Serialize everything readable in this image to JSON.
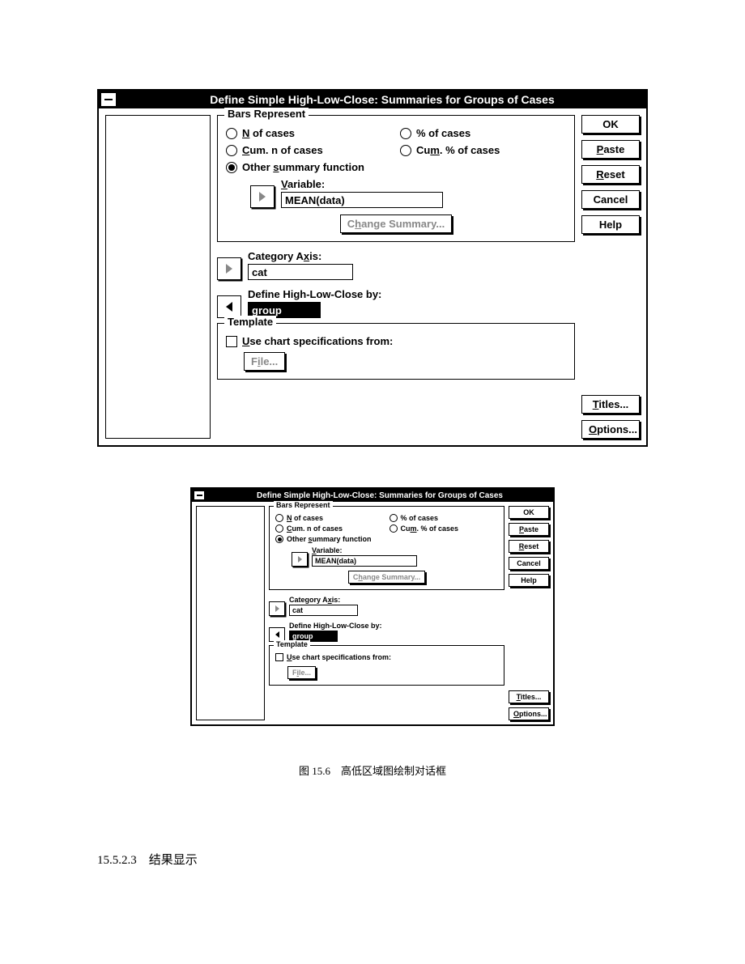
{
  "title": "Define Simple High-Low-Close: Summaries for Groups of Cases",
  "bars_represent": {
    "legend": "Bars Represent",
    "options": {
      "n_cases_pre": "N",
      "n_cases_post": " of cases",
      "pct_cases": "% of cases",
      "cum_n_pre": "C",
      "cum_n_mid": "um. n of cases",
      "cum_pct_pre": "Cu",
      "cum_pct_u": "m",
      "cum_pct_post": ". % of cases",
      "other_pre": "Other ",
      "other_u": "s",
      "other_post": "ummary function"
    },
    "variable_label_pre": "V",
    "variable_label_post": "ariable:",
    "variable_value": "MEAN(data)",
    "change_summary_pre": "C",
    "change_summary_u": "h",
    "change_summary_post": "ange Summary..."
  },
  "category_axis": {
    "label_pre": "Category A",
    "label_u": "x",
    "label_post": "is:",
    "value": "cat"
  },
  "define_by": {
    "label": "Define High-Low-Close by:",
    "value": "group"
  },
  "template": {
    "legend": "Template",
    "check_pre": "U",
    "check_post": "se chart specifications from:",
    "file_btn_pre": "F",
    "file_btn_u": "i",
    "file_btn_post": "le..."
  },
  "buttons": {
    "ok": "OK",
    "paste_u": "P",
    "paste_post": "aste",
    "reset_u": "R",
    "reset_post": "eset",
    "cancel": "Cancel",
    "help": "Help",
    "titles_u": "T",
    "titles_post": "itles...",
    "options_u": "O",
    "options_post": "ptions..."
  },
  "caption": "图 15.6　高低区域图绘制对话框",
  "section": "15.5.2.3　结果显示"
}
